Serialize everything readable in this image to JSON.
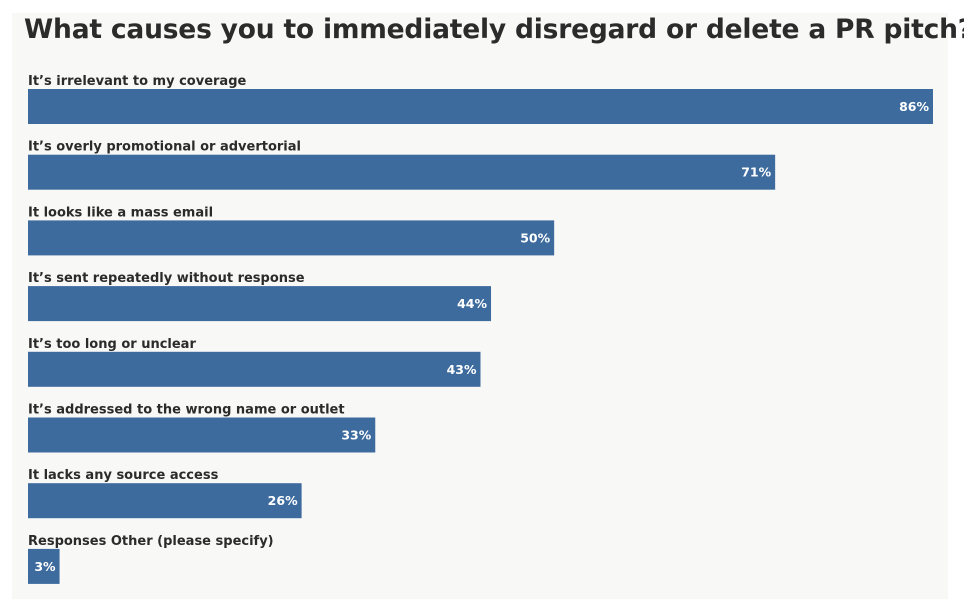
{
  "colors": {
    "bar": "#3d6b9e",
    "background": "#f8f8f6",
    "text": "#2b2b2b",
    "value_text": "#ffffff"
  },
  "chart_data": {
    "type": "bar",
    "orientation": "horizontal",
    "title": "What causes you to immediately disregard or delete a PR pitch?",
    "categories": [
      "It’s irrelevant to my coverage",
      "It’s overly promotional or advertorial",
      "It looks like a mass email",
      "It’s sent repeatedly without response",
      "It’s too long or unclear",
      "It’s addressed to the wrong name or outlet",
      "It lacks any source access",
      "Responses Other (please specify)"
    ],
    "values": [
      86,
      71,
      50,
      44,
      43,
      33,
      26,
      3
    ],
    "value_labels": [
      "86%",
      "71%",
      "50%",
      "44%",
      "43%",
      "33%",
      "26%",
      "3%"
    ],
    "unit": "%",
    "xlim": [
      0,
      86
    ],
    "grid": false,
    "legend": "none"
  }
}
